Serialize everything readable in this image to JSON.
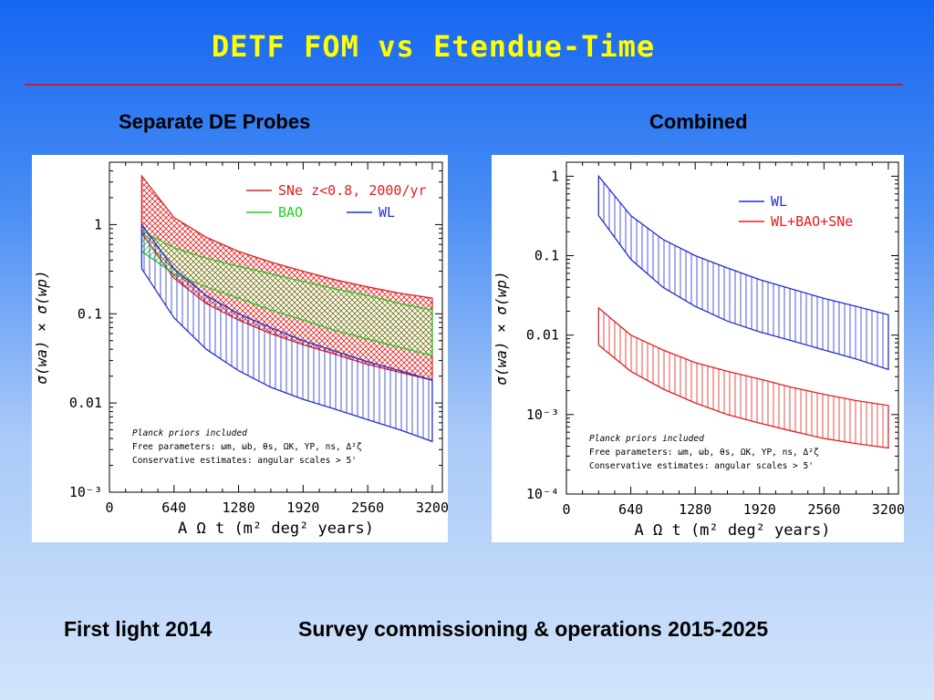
{
  "slide": {
    "title": "DETF FOM  vs  Etendue-Time",
    "left_heading": "Separate DE Probes",
    "right_heading": "Combined",
    "footer_left": "First light 2014",
    "footer_right": "Survey commissioning & operations 2015-2025",
    "colors": {
      "title": "#ffff00",
      "rule": "#c8202a",
      "red": "#e02020",
      "green": "#20d020",
      "blue": "#2030d0"
    }
  },
  "chart_data": [
    {
      "type": "area",
      "title": "",
      "xlabel": "A Ω t  (m² deg² years)",
      "ylabel": "σ(wa) × σ(wp)",
      "xlim": [
        0,
        3300
      ],
      "ylim": [
        0.001,
        5
      ],
      "yscale": "log",
      "xticks": [
        "0",
        "640",
        "1280",
        "1920",
        "2560",
        "3200"
      ],
      "yticks": [
        "10⁻³",
        "0.01",
        "0.1",
        "1"
      ],
      "legend": [
        {
          "label": "SNe z<0.8, 2000/yr",
          "color": "#e02020"
        },
        {
          "label": "BAO",
          "color": "#20d020"
        },
        {
          "label": "WL",
          "color": "#2030d0"
        }
      ],
      "legend_position": "top-right",
      "notes": [
        "Planck priors included",
        "Free parameters: ωm, ωb, θs, ΩK, YP, ns, Δ²ζ",
        "Conservative estimates: angular scales > 5'"
      ],
      "x": [
        320,
        640,
        960,
        1280,
        1600,
        1920,
        2240,
        2560,
        2880,
        3200
      ],
      "series": [
        {
          "name": "SNe z<0.8, 2000/yr",
          "color": "#e02020",
          "hatch": "cross",
          "upper": [
            3.5,
            1.2,
            0.72,
            0.5,
            0.38,
            0.3,
            0.24,
            0.2,
            0.17,
            0.15
          ],
          "lower": [
            0.8,
            0.25,
            0.13,
            0.085,
            0.06,
            0.045,
            0.035,
            0.027,
            0.022,
            0.018
          ]
        },
        {
          "name": "BAO",
          "color": "#20d020",
          "hatch": "diagonal",
          "upper": [
            0.85,
            0.55,
            0.42,
            0.34,
            0.28,
            0.23,
            0.19,
            0.16,
            0.13,
            0.11
          ],
          "lower": [
            0.5,
            0.28,
            0.2,
            0.15,
            0.11,
            0.085,
            0.065,
            0.052,
            0.042,
            0.034
          ]
        },
        {
          "name": "WL",
          "color": "#2030d0",
          "hatch": "vertical",
          "upper": [
            1.0,
            0.32,
            0.16,
            0.1,
            0.07,
            0.05,
            0.038,
            0.029,
            0.023,
            0.018
          ],
          "lower": [
            0.32,
            0.09,
            0.04,
            0.023,
            0.015,
            0.011,
            0.0085,
            0.0065,
            0.005,
            0.0037
          ]
        }
      ]
    },
    {
      "type": "area",
      "title": "",
      "xlabel": "A Ω t  (m² deg² years)",
      "ylabel": "σ(wa) × σ(wp)",
      "xlim": [
        0,
        3300
      ],
      "ylim": [
        0.0001,
        1.5
      ],
      "yscale": "log",
      "xticks": [
        "0",
        "640",
        "1280",
        "1920",
        "2560",
        "3200"
      ],
      "yticks": [
        "10⁻⁴",
        "10⁻³",
        "0.01",
        "0.1",
        "1"
      ],
      "legend": [
        {
          "label": "WL",
          "color": "#2030d0"
        },
        {
          "label": "WL+BAO+SNe",
          "color": "#e02020"
        }
      ],
      "legend_position": "top-right",
      "notes": [
        "Planck priors included",
        "Free parameters: ωm, ωb, θs, ΩK, YP, ns, Δ²ζ",
        "Conservative estimates: angular scales > 5'"
      ],
      "x": [
        320,
        640,
        960,
        1280,
        1600,
        1920,
        2240,
        2560,
        2880,
        3200
      ],
      "series": [
        {
          "name": "WL",
          "color": "#2030d0",
          "hatch": "vertical",
          "upper": [
            1.0,
            0.32,
            0.16,
            0.1,
            0.07,
            0.05,
            0.038,
            0.029,
            0.023,
            0.018
          ],
          "lower": [
            0.32,
            0.09,
            0.04,
            0.023,
            0.015,
            0.011,
            0.0085,
            0.0065,
            0.005,
            0.0037
          ]
        },
        {
          "name": "WL+BAO+SNe",
          "color": "#e02020",
          "hatch": "vertical",
          "upper": [
            0.022,
            0.01,
            0.0065,
            0.0045,
            0.0035,
            0.0028,
            0.0022,
            0.0018,
            0.0015,
            0.0013
          ],
          "lower": [
            0.0075,
            0.0035,
            0.0021,
            0.0014,
            0.001,
            0.00078,
            0.00062,
            0.0005,
            0.00043,
            0.00038
          ]
        }
      ]
    }
  ]
}
